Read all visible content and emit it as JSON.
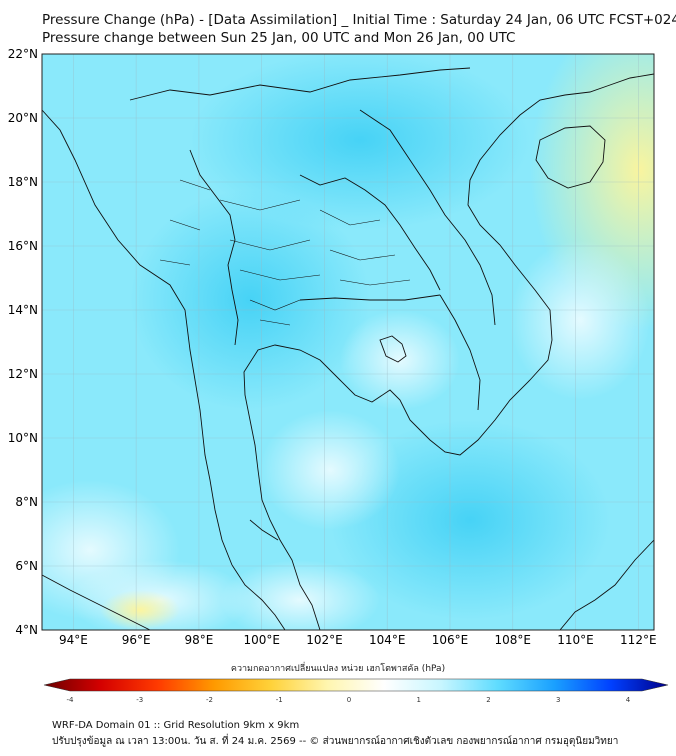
{
  "title_line1": "Pressure Change (hPa) - [Data Assimilation] _ Initial Time : Saturday 24 Jan, 06 UTC FCST+024",
  "title_line2": "Pressure change between Sun 25 Jan, 00 UTC and Mon 26 Jan, 00 UTC",
  "lat_ticks": [
    "22°N",
    "20°N",
    "18°N",
    "16°N",
    "14°N",
    "12°N",
    "10°N",
    "8°N",
    "6°N",
    "4°N"
  ],
  "lon_ticks": [
    "94°E",
    "96°E",
    "98°E",
    "100°E",
    "102°E",
    "104°E",
    "106°E",
    "108°E",
    "110°E",
    "112°E"
  ],
  "colorbar": {
    "label": "ความกดอากาศเปลี่ยนแปลง หน่วย เฮกโตพาสคัล (hPa)",
    "ticks": [
      "-4",
      "-3",
      "-2",
      "-1",
      "0",
      "1",
      "2",
      "3",
      "4"
    ],
    "colors": [
      "#6b0000",
      "#d40000",
      "#ff3a00",
      "#ff9a00",
      "#ffd23a",
      "#fff6b0",
      "#ffffff",
      "#c8f6ff",
      "#5fdcff",
      "#1aa0ff",
      "#0040ff",
      "#00008a"
    ]
  },
  "footer_line1": "WRF-DA Domain 01 :: Grid Resolution 9km x 9km",
  "footer_line2": "ปรับปรุงข้อมูล ณ เวลา 13:00น. วัน ส. ที่ 24 ม.ค. 2569 -- © ส่วนพยากรณ์อากาศเชิงตัวเลข กองพยากรณ์อากาศ กรมอุตุนิยมวิทยา"
}
